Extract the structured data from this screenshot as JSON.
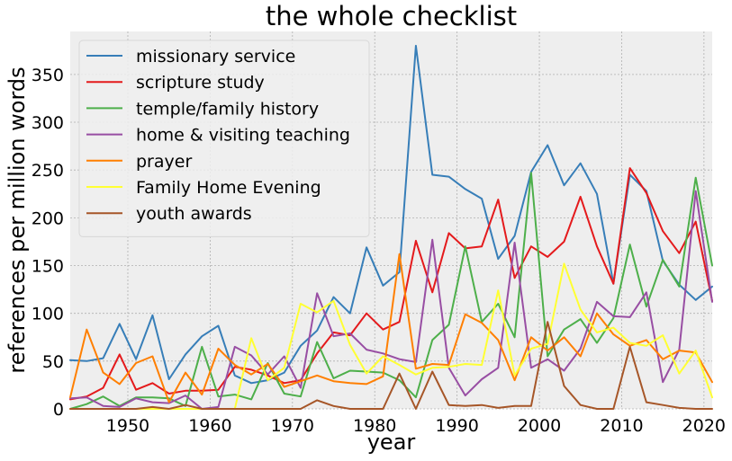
{
  "chart_data": {
    "type": "line",
    "title": "the whole checklist",
    "xlabel": "year",
    "ylabel": "references per million words",
    "xlim": [
      1943,
      2021
    ],
    "ylim": [
      0,
      395
    ],
    "xticks": [
      1950,
      1960,
      1970,
      1980,
      1990,
      2000,
      2010,
      2020
    ],
    "yticks": [
      0,
      50,
      100,
      150,
      200,
      250,
      300,
      350
    ],
    "grid": true,
    "legend_position": "top-left",
    "x": [
      1943,
      1945,
      1947,
      1949,
      1951,
      1953,
      1955,
      1957,
      1959,
      1961,
      1963,
      1965,
      1967,
      1969,
      1971,
      1973,
      1975,
      1977,
      1979,
      1981,
      1983,
      1985,
      1987,
      1989,
      1991,
      1993,
      1995,
      1997,
      1999,
      2001,
      2003,
      2005,
      2007,
      2009,
      2011,
      2013,
      2015,
      2017,
      2019,
      2021
    ],
    "series": [
      {
        "name": "missionary service",
        "color": "#377eb8",
        "values": [
          51,
          50,
          53,
          89,
          52,
          98,
          31,
          57,
          76,
          87,
          35,
          27,
          30,
          38,
          66,
          82,
          117,
          100,
          169,
          129,
          143,
          380,
          245,
          243,
          230,
          220,
          157,
          181,
          248,
          276,
          234,
          257,
          225,
          131,
          245,
          228,
          155,
          130,
          114,
          128
        ]
      },
      {
        "name": "scripture study",
        "color": "#e41a1c",
        "values": [
          10,
          13,
          22,
          57,
          20,
          27,
          16,
          19,
          19,
          20,
          44,
          41,
          35,
          27,
          30,
          58,
          80,
          77,
          100,
          83,
          91,
          176,
          122,
          184,
          168,
          170,
          219,
          137,
          170,
          159,
          175,
          222,
          170,
          131,
          252,
          226,
          186,
          163,
          196,
          113
        ]
      },
      {
        "name": "temple/family history",
        "color": "#4daf4a",
        "values": [
          0,
          5,
          13,
          3,
          12,
          12,
          11,
          3,
          65,
          13,
          15,
          10,
          48,
          16,
          13,
          70,
          32,
          40,
          39,
          38,
          30,
          12,
          72,
          88,
          170,
          91,
          110,
          75,
          247,
          55,
          83,
          94,
          69,
          95,
          172,
          107,
          156,
          128,
          242,
          150
        ]
      },
      {
        "name": "home & visiting teaching",
        "color": "#984ea3",
        "values": [
          11,
          12,
          3,
          2,
          11,
          7,
          6,
          14,
          0,
          2,
          65,
          56,
          36,
          55,
          22,
          121,
          76,
          79,
          62,
          58,
          52,
          49,
          177,
          43,
          14,
          31,
          43,
          174,
          43,
          52,
          40,
          63,
          112,
          97,
          96,
          122,
          28,
          62,
          228,
          112
        ]
      },
      {
        "name": "prayer",
        "color": "#ff7f00",
        "values": [
          12,
          83,
          38,
          26,
          48,
          55,
          7,
          38,
          15,
          63,
          46,
          36,
          47,
          23,
          29,
          35,
          29,
          27,
          26,
          34,
          162,
          42,
          47,
          46,
          99,
          90,
          72,
          30,
          75,
          61,
          75,
          55,
          100,
          78,
          66,
          72,
          52,
          61,
          59,
          28
        ]
      },
      {
        "name": "Family Home Evening",
        "color": "#ffff33",
        "values": [
          0,
          0,
          0,
          0,
          0,
          0,
          0,
          0,
          0,
          0,
          0,
          74,
          30,
          43,
          110,
          101,
          113,
          67,
          37,
          55,
          46,
          36,
          43,
          44,
          47,
          46,
          124,
          35,
          63,
          68,
          152,
          104,
          80,
          85,
          69,
          66,
          77,
          37,
          61,
          12
        ]
      },
      {
        "name": "youth awards",
        "color": "#a65628",
        "values": [
          0,
          0,
          0,
          0,
          0,
          2,
          0,
          4,
          0,
          0,
          0,
          0,
          0,
          0,
          0,
          9,
          3,
          0,
          0,
          0,
          37,
          0,
          39,
          4,
          3,
          4,
          1,
          3,
          3,
          91,
          24,
          4,
          0,
          0,
          65,
          7,
          4,
          1,
          0,
          0
        ]
      }
    ]
  }
}
